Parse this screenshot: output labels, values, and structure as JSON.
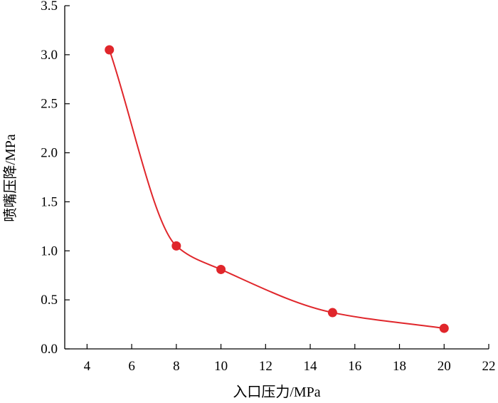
{
  "chart_data": {
    "type": "line",
    "title": "",
    "xlabel": "入口压力/MPa",
    "ylabel": "喷嘴压降/MPa",
    "xlim": [
      3,
      22
    ],
    "ylim": [
      0,
      3.5
    ],
    "xticks": [
      4,
      6,
      8,
      10,
      12,
      14,
      16,
      18,
      20,
      22
    ],
    "yticks": [
      "0.0",
      "0.5",
      "1.0",
      "1.5",
      "2.0",
      "2.5",
      "3.0",
      "3.5"
    ],
    "grid": false,
    "legend": "none",
    "series": [
      {
        "color": "#e0262b",
        "smooth": true,
        "x": [
          5,
          8,
          10,
          15,
          20
        ],
        "y": [
          3.05,
          1.05,
          0.81,
          0.37,
          0.21
        ]
      }
    ]
  }
}
